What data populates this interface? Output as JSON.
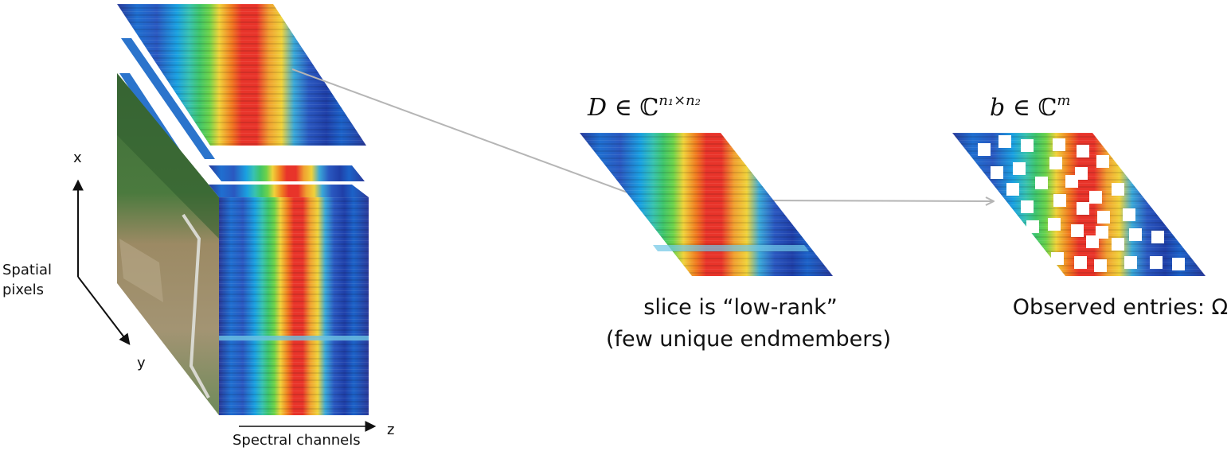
{
  "cube": {
    "axis_x_label": "x",
    "axis_y_label": "y",
    "axis_z_label": "z",
    "spatial_label_line1": "Spatial",
    "spatial_label_line2": "pixels",
    "spectral_label": "Spectral channels"
  },
  "slice": {
    "math_var": "D",
    "math_rel": "∈",
    "math_set": "ℂ",
    "math_exp": "n₁×n₂",
    "caption_line1": "slice is “low-rank”",
    "caption_line2": "(few unique endmembers)"
  },
  "observed": {
    "math_var": "b",
    "math_rel": "∈",
    "math_set": "ℂ",
    "math_exp": "m",
    "caption": "Observed entries: Ω"
  },
  "colors": {
    "arrow": "#b5b5b5",
    "spectrum_bg": "#2d3f9e",
    "band_green": "#3ec46a",
    "band_red": "#e8342a",
    "band_yellow": "#f0d23a",
    "mask": "#ffffff"
  }
}
